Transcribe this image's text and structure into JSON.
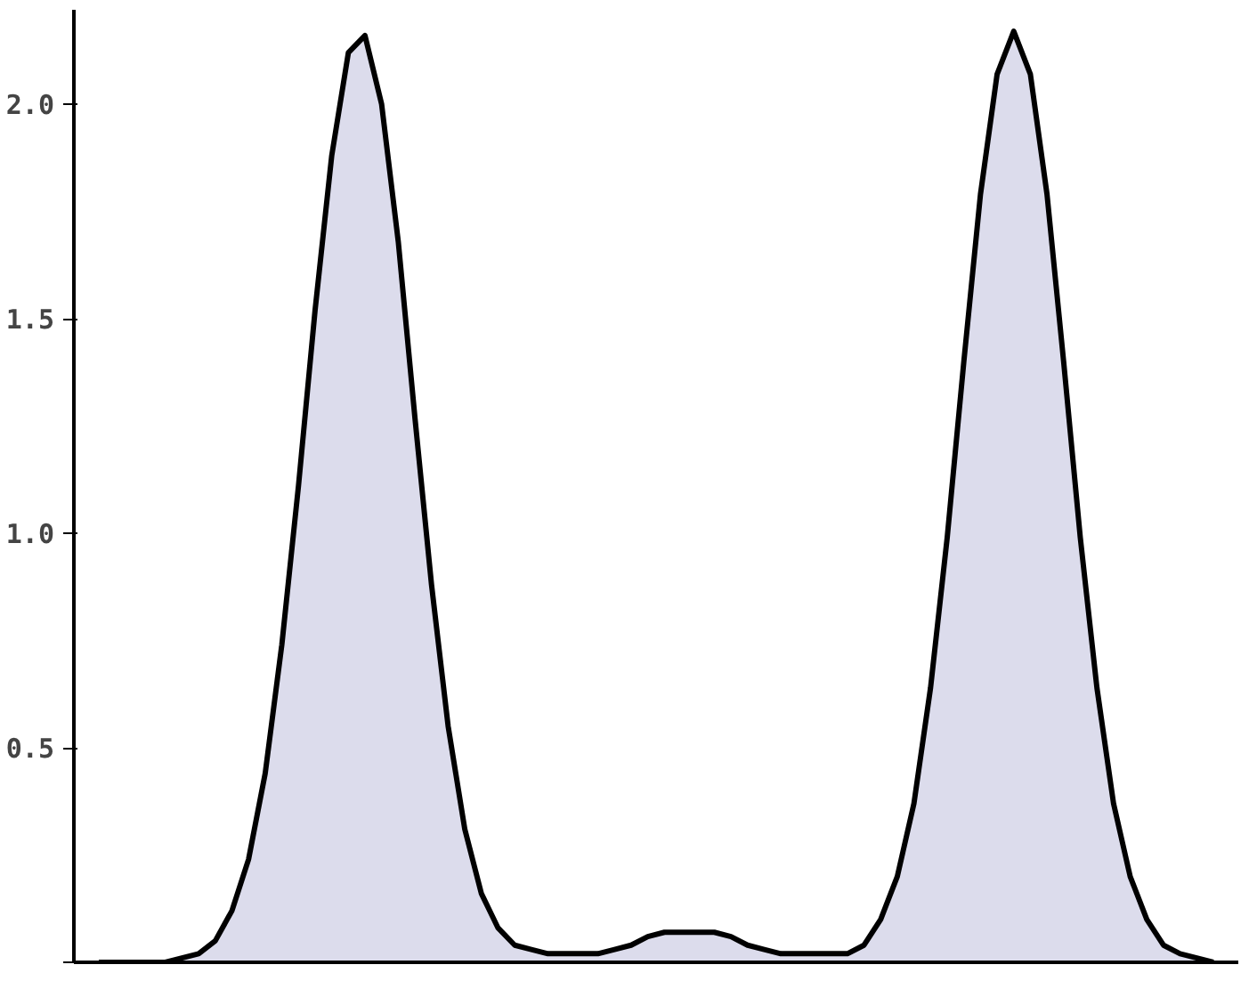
{
  "chart_data": {
    "type": "area",
    "categories": [
      null,
      null,
      null,
      null,
      null,
      null,
      null,
      null,
      null,
      null,
      null,
      null,
      null,
      null,
      null,
      null,
      null,
      null,
      null,
      null,
      null,
      null,
      null,
      null,
      null,
      null,
      null,
      null,
      null,
      null,
      null,
      null,
      null,
      null,
      null,
      null,
      null,
      null,
      null,
      null,
      null,
      null,
      null,
      null,
      null,
      null,
      null,
      null,
      null,
      null,
      null,
      null,
      null,
      null,
      null,
      null,
      null,
      null,
      null,
      null,
      null,
      null,
      null,
      null,
      null,
      null,
      null,
      null
    ],
    "series": [
      {
        "color": "#dcdcec",
        "values": [
          0,
          0,
          0,
          0,
          0,
          0.01,
          0.02,
          0.05,
          0.12,
          0.24,
          0.44,
          0.74,
          1.11,
          1.52,
          1.88,
          2.12,
          2.16,
          2.0,
          1.68,
          1.27,
          0.88,
          0.55,
          0.31,
          0.16,
          0.08,
          0.04,
          0.03,
          0.02,
          0.02,
          0.02,
          0.02,
          0.03,
          0.04,
          0.06,
          0.07,
          0.07,
          0.07,
          0.07,
          0.06,
          0.04,
          0.03,
          0.02,
          0.02,
          0.02,
          0.02,
          0.02,
          0.04,
          0.1,
          0.2,
          0.37,
          0.64,
          0.99,
          1.4,
          1.79,
          2.07,
          2.17,
          2.07,
          1.79,
          1.4,
          0.99,
          0.64,
          0.37,
          0.2,
          0.1,
          0.04,
          0.02,
          0.01,
          0
        ]
      }
    ],
    "ylim": [
      0,
      2.22
    ],
    "yticks": [
      {
        "value": 0,
        "label": null
      },
      0.5,
      {
        "value": 1,
        "label": "1.0"
      },
      1.5,
      {
        "value": 2,
        "label": "2.0"
      }
    ],
    "tick_labels": "y"
  }
}
